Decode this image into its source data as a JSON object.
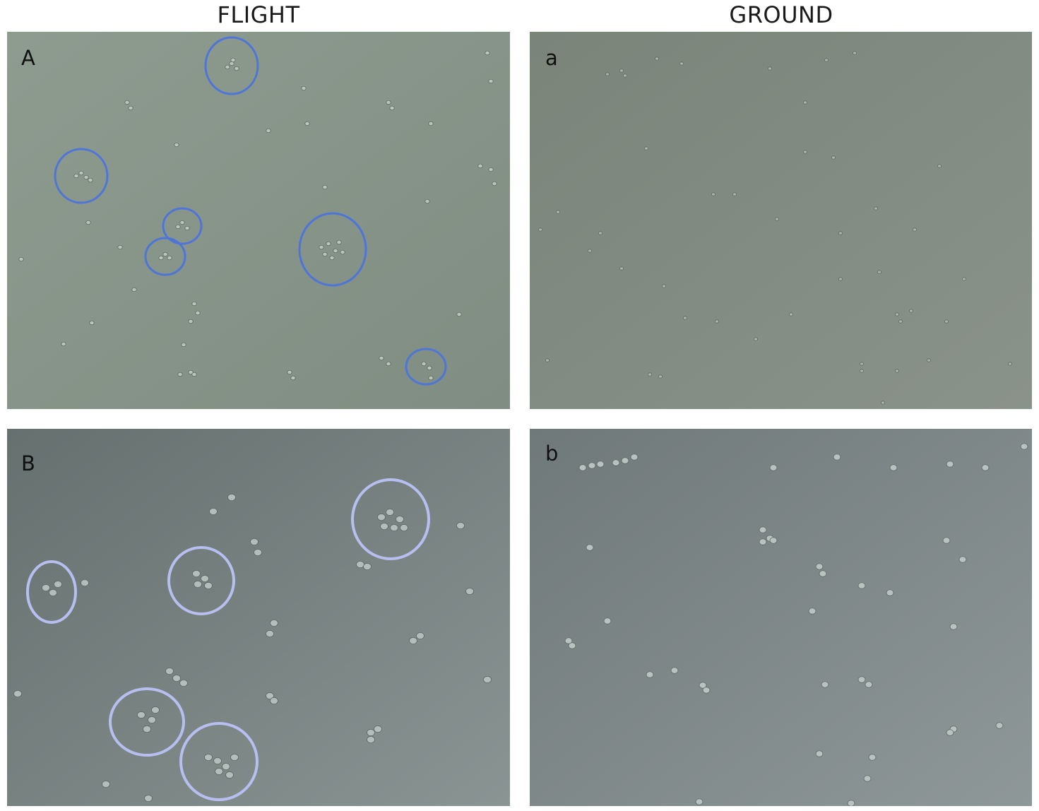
{
  "columns": {
    "left": "FLIGHT",
    "right": "GROUND"
  },
  "panels": {
    "A": {
      "label": "A",
      "bg_from": "#8e9c90",
      "bg_to": "#7f8d82",
      "cell_color": "#b9c6b9",
      "circle_color": "#4f75d8"
    },
    "a": {
      "label": "a",
      "bg_from": "#7a8479",
      "bg_to": "#8a938a",
      "cell_color": "#a9b4a9"
    },
    "B": {
      "label": "B",
      "bg_from": "#66706f",
      "bg_to": "#8a9493",
      "cell_color": "#b3bdbc",
      "circle_color": "#b7bff0"
    },
    "b": {
      "label": "b",
      "bg_from": "#70797a",
      "bg_to": "#8f9898",
      "cell_color": "#b8c2c1"
    }
  }
}
